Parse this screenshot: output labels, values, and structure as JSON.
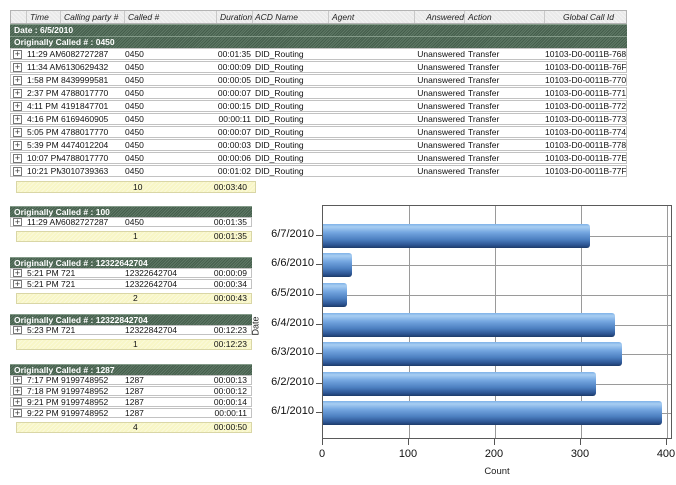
{
  "icons": {
    "expand_glyph": "+"
  },
  "colors": {
    "group_header_bg": "#4d6a55",
    "summary_bg": "#f8f6c6",
    "column_header_bg": "#eaeaea",
    "bar_blue": "#5b8fd4",
    "grid_gray": "#9a9a9a"
  },
  "main_table": {
    "columns": [
      "Time",
      "Calling party #",
      "Called #",
      "Duration",
      "ACD Name",
      "Agent",
      "Answered",
      "Action",
      "Global Call Id"
    ],
    "date_header": "Date : 6/5/2010",
    "group_header": "Originally Called # : 0450",
    "rows": [
      {
        "time": "11:29 AM",
        "calling": "6082727287",
        "called": "0450",
        "duration": "00:01:35",
        "acd": "DID_Routing",
        "agent": "",
        "answered": "Unanswered",
        "action": "Transfer",
        "global_id": "10103-D0-0011B-768"
      },
      {
        "time": "11:34 AM",
        "calling": "6130629432",
        "called": "0450",
        "duration": "00:00:09",
        "acd": "DID_Routing",
        "agent": "",
        "answered": "Unanswered",
        "action": "Transfer",
        "global_id": "10103-D0-0011B-76F"
      },
      {
        "time": "1:58 PM",
        "calling": "8439999581",
        "called": "0450",
        "duration": "00:00:05",
        "acd": "DID_Routing",
        "agent": "",
        "answered": "Unanswered",
        "action": "Transfer",
        "global_id": "10103-D0-0011B-770"
      },
      {
        "time": "2:37 PM",
        "calling": "4788017770",
        "called": "0450",
        "duration": "00:00:07",
        "acd": "DID_Routing",
        "agent": "",
        "answered": "Unanswered",
        "action": "Transfer",
        "global_id": "10103-D0-0011B-771"
      },
      {
        "time": "4:11 PM",
        "calling": "4191847701",
        "called": "0450",
        "duration": "00:00:15",
        "acd": "DID_Routing",
        "agent": "",
        "answered": "Unanswered",
        "action": "Transfer",
        "global_id": "10103-D0-0011B-772"
      },
      {
        "time": "4:16 PM",
        "calling": "6169460905",
        "called": "0450",
        "duration": "00:00:11",
        "acd": "DID_Routing",
        "agent": "",
        "answered": "Unanswered",
        "action": "Transfer",
        "global_id": "10103-D0-0011B-773"
      },
      {
        "time": "5:05 PM",
        "calling": "4788017770",
        "called": "0450",
        "duration": "00:00:07",
        "acd": "DID_Routing",
        "agent": "",
        "answered": "Unanswered",
        "action": "Transfer",
        "global_id": "10103-D0-0011B-774"
      },
      {
        "time": "5:39 PM",
        "calling": "4474012204",
        "called": "0450",
        "duration": "00:00:03",
        "acd": "DID_Routing",
        "agent": "",
        "answered": "Unanswered",
        "action": "Transfer",
        "global_id": "10103-D0-0011B-778"
      },
      {
        "time": "10:07 PM",
        "calling": "4788017770",
        "called": "0450",
        "duration": "00:00:06",
        "acd": "DID_Routing",
        "agent": "",
        "answered": "Unanswered",
        "action": "Transfer",
        "global_id": "10103-D0-0011B-77E"
      },
      {
        "time": "10:21 PM",
        "calling": "3010739363",
        "called": "0450",
        "duration": "00:01:02",
        "acd": "DID_Routing",
        "agent": "",
        "answered": "Unanswered",
        "action": "Transfer",
        "global_id": "10103-D0-0011B-77F"
      }
    ],
    "summary": {
      "count": "10",
      "duration": "00:03:40"
    }
  },
  "groups": [
    {
      "label": "Originally Called # : 100",
      "rows": [
        {
          "time": "11:29 AM",
          "calling": "6082727287",
          "called": "0450",
          "duration": "00:01:35"
        }
      ],
      "summary": {
        "count": "1",
        "duration": "00:01:35"
      }
    },
    {
      "label": "Originally Called # : 12322642704",
      "rows": [
        {
          "time": "5:21 PM",
          "calling": "721",
          "called": "12322642704",
          "duration": "00:00:09"
        },
        {
          "time": "5:21 PM",
          "calling": "721",
          "called": "12322642704",
          "duration": "00:00:34"
        }
      ],
      "summary": {
        "count": "2",
        "duration": "00:00:43"
      }
    },
    {
      "label": "Originally Called # : 12322842704",
      "rows": [
        {
          "time": "5:23 PM",
          "calling": "721",
          "called": "12322842704",
          "duration": "00:12:23"
        }
      ],
      "summary": {
        "count": "1",
        "duration": "00:12:23"
      }
    },
    {
      "label": "Originally Called # : 1287",
      "rows": [
        {
          "time": "7:17 PM",
          "calling": "9199748952",
          "called": "1287",
          "duration": "00:00:13"
        },
        {
          "time": "7:18 PM",
          "calling": "9199748952",
          "called": "1287",
          "duration": "00:00:12"
        },
        {
          "time": "9:21 PM",
          "calling": "9199748952",
          "called": "1287",
          "duration": "00:00:14"
        },
        {
          "time": "9:22 PM",
          "calling": "9199748952",
          "called": "1287",
          "duration": "00:00:11"
        }
      ],
      "summary": {
        "count": "4",
        "duration": "00:00:50"
      }
    }
  ],
  "chart_data": {
    "type": "bar",
    "orientation": "horizontal",
    "categories": [
      "6/7/2010",
      "6/6/2010",
      "6/5/2010",
      "6/4/2010",
      "6/3/2010",
      "6/2/2010",
      "6/1/2010"
    ],
    "values": [
      310,
      34,
      28,
      340,
      348,
      318,
      394
    ],
    "title": "",
    "xlabel": "Count",
    "ylabel": "Date",
    "xlim": [
      0,
      400
    ],
    "xticks": [
      0,
      100,
      200,
      300,
      400
    ],
    "grid": true,
    "legend": false
  }
}
